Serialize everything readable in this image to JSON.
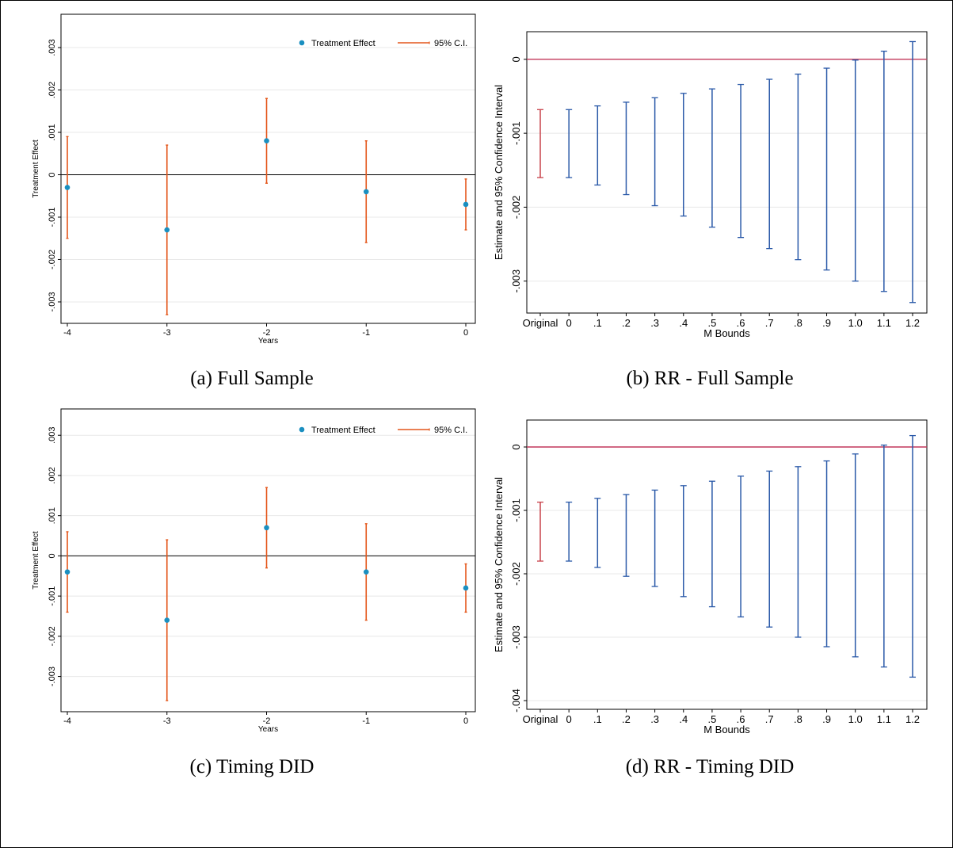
{
  "captions": {
    "a": "(a) Full Sample",
    "b": "(b) RR - Full Sample",
    "c": "(c) Timing DID",
    "d": "(d) RR - Timing DID"
  },
  "colors": {
    "point": "#1a8fc0",
    "ci": "#e4571b",
    "rr_original": "#c8424a",
    "rr_bar": "#2a59a8",
    "zero_line_rr": "#c2375a",
    "zero_line": "#000000",
    "grid": "#e8e8e8"
  },
  "chart_data": [
    {
      "id": "a",
      "type": "scatter",
      "title": "",
      "xlabel": "Years",
      "ylabel": "Treatment Effect",
      "x": [
        -4,
        -3,
        -2,
        -1,
        0
      ],
      "y": [
        -0.0003,
        -0.0013,
        0.0008,
        -0.0004,
        -0.0007
      ],
      "ci_low": [
        -0.0015,
        -0.0033,
        -0.0002,
        -0.0016,
        -0.0013
      ],
      "ci_high": [
        0.0009,
        0.0007,
        0.0018,
        0.0008,
        -0.0001
      ],
      "xticks": [
        "-4",
        "-3",
        "-2",
        "-1",
        "0"
      ],
      "yticks": [
        ".003",
        ".002",
        ".001",
        "0",
        "-.001",
        "-.002",
        "-.003"
      ],
      "ytick_values": [
        0.003,
        0.002,
        0.001,
        0,
        -0.001,
        -0.002,
        -0.003
      ],
      "ylim": [
        -0.0033,
        0.0033
      ],
      "xlim": [
        -4,
        0
      ],
      "legend": [
        "Treatment Effect",
        "95% C.I."
      ],
      "legend_position": "top-right",
      "grid": true
    },
    {
      "id": "b",
      "type": "bar",
      "title": "",
      "xlabel": "M Bounds",
      "ylabel": "Estimate and 95% Confidence Interval",
      "categories": [
        "Original",
        "0",
        ".1",
        ".2",
        ".3",
        ".4",
        ".5",
        ".6",
        ".7",
        ".8",
        ".9",
        "1.0",
        "1.1",
        "1.2"
      ],
      "ci_low": [
        -0.0016,
        -0.0016,
        -0.0017,
        -0.00183,
        -0.00198,
        -0.00212,
        -0.00227,
        -0.00241,
        -0.00256,
        -0.00271,
        -0.00285,
        -0.003,
        -0.00314,
        -0.00329
      ],
      "ci_high": [
        -0.00068,
        -0.00068,
        -0.00063,
        -0.00058,
        -0.00052,
        -0.00046,
        -0.0004,
        -0.00034,
        -0.00027,
        -0.0002,
        -0.00012,
        -1e-05,
        0.00011,
        0.00024
      ],
      "yticks": [
        "0",
        "-.001",
        "-.002",
        "-.003"
      ],
      "ytick_values": [
        0,
        -0.001,
        -0.002,
        -0.003
      ],
      "ylim": [
        -0.0034,
        0.00032
      ],
      "grid": true
    },
    {
      "id": "c",
      "type": "scatter",
      "title": "",
      "xlabel": "Years",
      "ylabel": "Treatment Effect",
      "x": [
        -4,
        -3,
        -2,
        -1,
        0
      ],
      "y": [
        -0.0004,
        -0.0016,
        0.0007,
        -0.0004,
        -0.0008
      ],
      "ci_low": [
        -0.0014,
        -0.0036,
        -0.0003,
        -0.0016,
        -0.0014
      ],
      "ci_high": [
        0.0006,
        0.0004,
        0.0017,
        0.0008,
        -0.0002
      ],
      "xticks": [
        "-4",
        "-3",
        "-2",
        "-1",
        "0"
      ],
      "yticks": [
        ".003",
        ".002",
        ".001",
        "0",
        "-.001",
        "-.002",
        "-.003"
      ],
      "ytick_values": [
        0.003,
        0.002,
        0.001,
        0,
        -0.001,
        -0.002,
        -0.003
      ],
      "ylim": [
        -0.0036,
        0.0033
      ],
      "xlim": [
        -4,
        0
      ],
      "legend": [
        "Treatment Effect",
        "95% C.I."
      ],
      "legend_position": "top-right",
      "grid": true
    },
    {
      "id": "d",
      "type": "bar",
      "title": "",
      "xlabel": "M Bounds",
      "ylabel": "Estimate and 95% Confidence Interval",
      "categories": [
        "Original",
        "0",
        ".1",
        ".2",
        ".3",
        ".4",
        ".5",
        ".6",
        ".7",
        ".8",
        ".9",
        "1.0",
        "1.1",
        "1.2"
      ],
      "ci_low": [
        -0.0018,
        -0.0018,
        -0.0019,
        -0.00204,
        -0.0022,
        -0.00236,
        -0.00252,
        -0.00268,
        -0.00284,
        -0.003,
        -0.00315,
        -0.00331,
        -0.00347,
        -0.00363
      ],
      "ci_high": [
        -0.00087,
        -0.00087,
        -0.00081,
        -0.00075,
        -0.00068,
        -0.00061,
        -0.00054,
        -0.00046,
        -0.00038,
        -0.00031,
        -0.00022,
        -0.00011,
        3e-05,
        0.00018
      ],
      "yticks": [
        "0",
        "-.001",
        "-.002",
        "-.003",
        "-.004"
      ],
      "ytick_values": [
        0,
        -0.001,
        -0.002,
        -0.003,
        -0.004
      ],
      "ylim": [
        -0.0041,
        0.00035
      ],
      "grid": true
    }
  ]
}
